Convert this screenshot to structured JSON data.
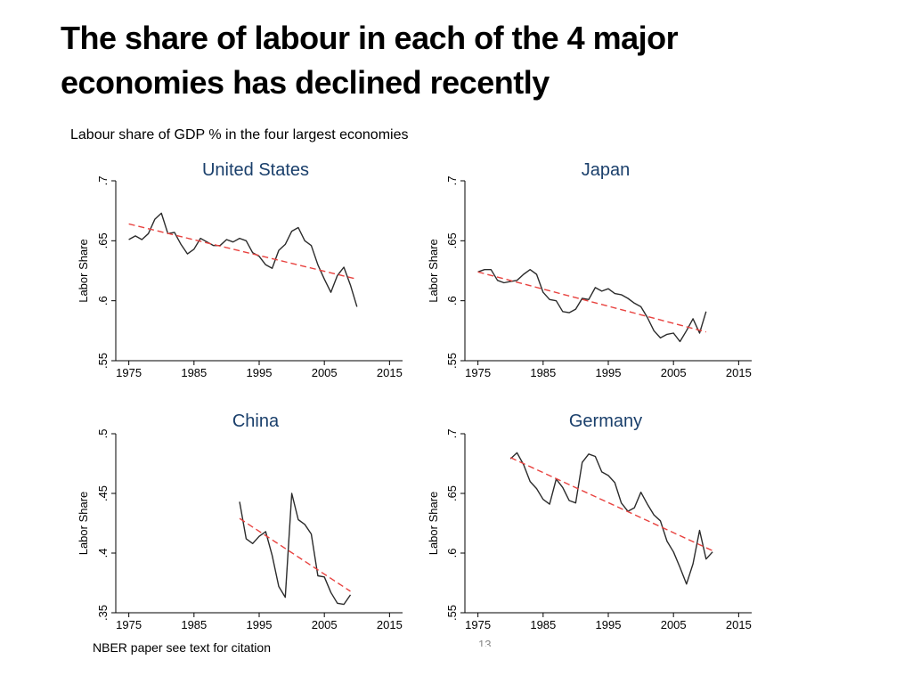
{
  "slide": {
    "title_line1": "The share of labour in each of the 4 major",
    "title_line2": "economies has declined recently",
    "subtitle": "Labour share of GDP % in the four largest economies",
    "footer_note": "NBER paper see text for citation",
    "page_number": "13"
  },
  "colors": {
    "series_line": "#2b2b2b",
    "trend_line": "#e8423f",
    "panel_title": "#1a3f6b",
    "axis": "#000000"
  },
  "chart_data": [
    {
      "type": "line",
      "title": "United States",
      "xlabel": "",
      "ylabel": "Labor Share",
      "xlim": [
        1973,
        2017
      ],
      "ylim": [
        0.55,
        0.7
      ],
      "xticks": [
        1975,
        1985,
        1995,
        2005,
        2015
      ],
      "yticks": [
        0.55,
        0.6,
        0.65,
        0.7
      ],
      "ytick_labels": [
        ".55",
        ".6",
        ".65",
        ".7"
      ],
      "grid": false,
      "series": [
        {
          "x": [
            1975,
            1976,
            1977,
            1978,
            1979,
            1980,
            1981,
            1982,
            1983,
            1984,
            1985,
            1986,
            1987,
            1988,
            1989,
            1990,
            1991,
            1992,
            1993,
            1994,
            1995,
            1996,
            1997,
            1998,
            1999,
            2000,
            2001,
            2002,
            2003,
            2004,
            2005,
            2006,
            2007,
            2008,
            2009,
            2010
          ],
          "y": [
            0.651,
            0.654,
            0.651,
            0.656,
            0.668,
            0.673,
            0.656,
            0.657,
            0.647,
            0.639,
            0.643,
            0.652,
            0.649,
            0.646,
            0.646,
            0.651,
            0.649,
            0.652,
            0.65,
            0.64,
            0.637,
            0.63,
            0.627,
            0.642,
            0.647,
            0.658,
            0.661,
            0.65,
            0.646,
            0.63,
            0.618,
            0.607,
            0.621,
            0.628,
            0.613,
            0.595
          ]
        },
        {
          "name": "",
          "style": "dashed-trend",
          "x": [
            1975,
            2010
          ],
          "y": [
            0.664,
            0.618
          ]
        }
      ]
    },
    {
      "type": "line",
      "title": "Japan",
      "xlabel": "",
      "ylabel": "Labor Share",
      "xlim": [
        1973,
        2017
      ],
      "ylim": [
        0.55,
        0.7
      ],
      "xticks": [
        1975,
        1985,
        1995,
        2005,
        2015
      ],
      "yticks": [
        0.55,
        0.6,
        0.65,
        0.7
      ],
      "ytick_labels": [
        ".55",
        ".6",
        ".65",
        ".7"
      ],
      "grid": false,
      "series": [
        {
          "x": [
            1975,
            1976,
            1977,
            1978,
            1979,
            1980,
            1981,
            1982,
            1983,
            1984,
            1985,
            1986,
            1987,
            1988,
            1989,
            1990,
            1991,
            1992,
            1993,
            1994,
            1995,
            1996,
            1997,
            1998,
            1999,
            2000,
            2001,
            2002,
            2003,
            2004,
            2005,
            2006,
            2007,
            2008,
            2009,
            2010
          ],
          "y": [
            0.624,
            0.626,
            0.626,
            0.617,
            0.615,
            0.616,
            0.617,
            0.622,
            0.626,
            0.622,
            0.607,
            0.601,
            0.6,
            0.591,
            0.59,
            0.593,
            0.602,
            0.601,
            0.611,
            0.608,
            0.61,
            0.606,
            0.605,
            0.602,
            0.598,
            0.595,
            0.586,
            0.575,
            0.569,
            0.572,
            0.573,
            0.566,
            0.575,
            0.585,
            0.573,
            0.591
          ]
        },
        {
          "name": "",
          "style": "dashed-trend",
          "x": [
            1975,
            2010
          ],
          "y": [
            0.624,
            0.574
          ]
        }
      ]
    },
    {
      "type": "line",
      "title": "China",
      "xlabel": "",
      "ylabel": "Labor Share",
      "xlim": [
        1973,
        2017
      ],
      "ylim": [
        0.35,
        0.5
      ],
      "xticks": [
        1975,
        1985,
        1995,
        2005,
        2015
      ],
      "yticks": [
        0.35,
        0.4,
        0.45,
        0.5
      ],
      "ytick_labels": [
        ".35",
        ".4",
        ".45",
        ".5"
      ],
      "grid": false,
      "series": [
        {
          "x": [
            1992,
            1993,
            1994,
            1995,
            1996,
            1997,
            1998,
            1999,
            2000,
            2001,
            2002,
            2003,
            2004,
            2005,
            2006,
            2007,
            2008,
            2009
          ],
          "y": [
            0.443,
            0.412,
            0.408,
            0.414,
            0.418,
            0.398,
            0.372,
            0.363,
            0.45,
            0.428,
            0.424,
            0.416,
            0.381,
            0.38,
            0.367,
            0.358,
            0.357,
            0.365
          ]
        },
        {
          "name": "",
          "style": "dashed-trend",
          "x": [
            1992,
            2009
          ],
          "y": [
            0.429,
            0.368
          ]
        }
      ]
    },
    {
      "type": "line",
      "title": "Germany",
      "xlabel": "",
      "ylabel": "Labor Share",
      "xlim": [
        1973,
        2017
      ],
      "ylim": [
        0.55,
        0.7
      ],
      "xticks": [
        1975,
        1985,
        1995,
        2005,
        2015
      ],
      "yticks": [
        0.55,
        0.6,
        0.65,
        0.7
      ],
      "ytick_labels": [
        ".55",
        ".6",
        ".65",
        ".7"
      ],
      "grid": false,
      "series": [
        {
          "x": [
            1980,
            1981,
            1982,
            1983,
            1984,
            1985,
            1986,
            1987,
            1988,
            1989,
            1990,
            1991,
            1992,
            1993,
            1994,
            1995,
            1996,
            1997,
            1998,
            1999,
            2000,
            2001,
            2002,
            2003,
            2004,
            2005,
            2006,
            2007,
            2008,
            2009,
            2010,
            2011
          ],
          "y": [
            0.679,
            0.684,
            0.674,
            0.66,
            0.654,
            0.645,
            0.641,
            0.662,
            0.655,
            0.644,
            0.642,
            0.676,
            0.683,
            0.681,
            0.668,
            0.665,
            0.659,
            0.642,
            0.635,
            0.638,
            0.651,
            0.641,
            0.632,
            0.627,
            0.61,
            0.601,
            0.588,
            0.574,
            0.591,
            0.619,
            0.595,
            0.601
          ]
        },
        {
          "name": "",
          "style": "dashed-trend",
          "x": [
            1980,
            2011
          ],
          "y": [
            0.68,
            0.602
          ]
        }
      ]
    }
  ]
}
